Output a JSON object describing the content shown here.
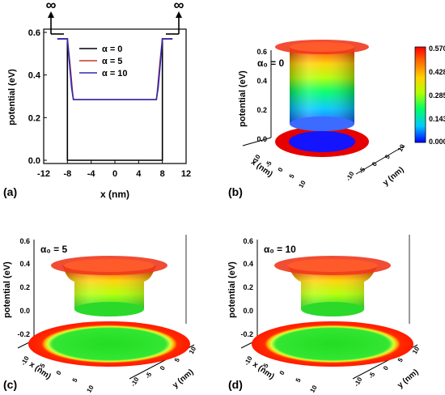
{
  "colors": {
    "alpha0": "#000000",
    "alpha5": "#c0392b",
    "alpha10": "#2b2bb8",
    "colorbar": [
      "#0000ff",
      "#00c8ff",
      "#00ff66",
      "#b4ff00",
      "#ffd200",
      "#ff6a00",
      "#ff0000"
    ]
  },
  "panel_labels": [
    "(a)",
    "(b)",
    "(c)",
    "(d)"
  ],
  "chart_data": [
    {
      "panel": "(a)",
      "type": "line",
      "xlabel": "x (nm)",
      "ylabel": "potential (eV)",
      "xlim": [
        -12,
        12
      ],
      "ylim": [
        0,
        0.6
      ],
      "xticks": [
        -12,
        -8,
        -4,
        0,
        4,
        8,
        12
      ],
      "yticks": [
        0.0,
        0.2,
        0.4,
        0.6
      ],
      "ytick_labels": [
        "0.0",
        "0.2",
        "0.4",
        "0.6"
      ],
      "infinity_labels": [
        "∞",
        "∞"
      ],
      "legend_position": "top-right",
      "series": [
        {
          "name": "α = 0",
          "x": [
            -9.7,
            -8,
            -8,
            8,
            8,
            9.7
          ],
          "y": [
            0.57,
            0.57,
            0.0,
            0.0,
            0.57,
            0.57
          ]
        },
        {
          "name": "α = 5",
          "x": [
            -9.7,
            -8,
            -7.6,
            -7.1,
            -7,
            7,
            7.1,
            7.6,
            8,
            9.7
          ],
          "y": [
            0.57,
            0.57,
            0.46,
            0.31,
            0.285,
            0.285,
            0.31,
            0.46,
            0.57,
            0.57
          ]
        },
        {
          "name": "α = 10",
          "x": [
            -9.7,
            -8,
            -7.8,
            -7.3,
            -7,
            7,
            7.3,
            7.8,
            8,
            9.7
          ],
          "y": [
            0.57,
            0.57,
            0.5,
            0.34,
            0.285,
            0.285,
            0.34,
            0.5,
            0.57,
            0.57
          ]
        }
      ]
    },
    {
      "panel": "(b)",
      "type": "surface",
      "annotation": "α₀ = 0",
      "xlabel": "x (nm)",
      "ylabel": "y (nm)",
      "zlabel": "potential (eV)",
      "zticks": [
        "0.6",
        "0.4",
        "0.2",
        "0.0"
      ],
      "xticks": [
        "-10",
        "-5",
        "0",
        "5",
        "10"
      ],
      "yticks": [
        "-10",
        "-5",
        "0",
        "5",
        "10"
      ],
      "colorbar_ticks": [
        "0.570",
        "0.428",
        "0.285",
        "0.143",
        "0.000"
      ],
      "well_floor_eV": 0.0,
      "barrier_eV": 0.57
    },
    {
      "panel": "(c)",
      "type": "surface",
      "annotation": "α₀ = 5",
      "xlabel": "x (nm)",
      "ylabel": "y (nm)",
      "zlabel": "potential (eV)",
      "zticks": [
        "0.6",
        "0.4",
        "0.2",
        "0.0",
        "-0.2"
      ],
      "xticks": [
        "-10",
        "-5",
        "0",
        "5",
        "10"
      ],
      "yticks": [
        "-10",
        "-5",
        "0",
        "5",
        "10"
      ],
      "well_floor_eV": 0.285,
      "barrier_eV": 0.57
    },
    {
      "panel": "(d)",
      "type": "surface",
      "annotation": "α₀ = 10",
      "xlabel": "x (nm)",
      "ylabel": "y (nm)",
      "zlabel": "potential (eV)",
      "zticks": [
        "0.6",
        "0.4",
        "0.2",
        "0.0",
        "-0.2"
      ],
      "xticks": [
        "-10",
        "-5",
        "0",
        "5",
        "10"
      ],
      "yticks": [
        "-10",
        "-5",
        "0",
        "5",
        "10"
      ],
      "well_floor_eV": 0.285,
      "barrier_eV": 0.57
    }
  ]
}
